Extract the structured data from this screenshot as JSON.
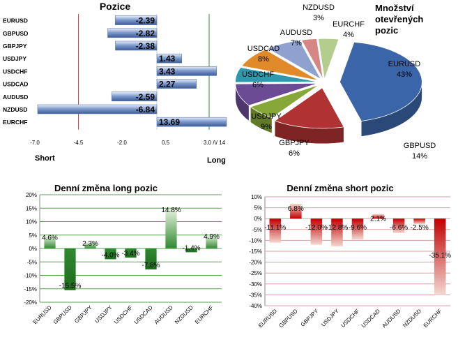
{
  "colors": {
    "bar_blue": "#7f9ccd",
    "bar_blue_dark": "#3c5a96",
    "bar_green": "#2f8a2f",
    "bar_green_light": "#e8f3e0",
    "bar_red": "#c00000",
    "bar_red_light": "#f3d8d0",
    "short_line": "#c84848",
    "long_line": "#2e8b2e",
    "zero_line": "#d0d0d0",
    "grid_green": "#5aa050",
    "grid_red": "#d8a0a0"
  },
  "chart_data": [
    {
      "type": "bar",
      "orientation": "horizontal",
      "title": "Pozice",
      "categories": [
        "EURUSD",
        "GBPUSD",
        "GBPJPY",
        "USDJPY",
        "USDCHF",
        "USDCAD",
        "AUDUSD",
        "NZDUSD",
        "EURCHF"
      ],
      "values": [
        -2.39,
        -2.82,
        -2.38,
        1.43,
        3.43,
        2.27,
        -2.59,
        -6.84,
        13.69
      ],
      "value_labels": [
        "-2.39",
        "-2.82",
        "-2.38",
        "1.43",
        "3.43",
        "2.27",
        "-2.59",
        "-6.84",
        "13.69"
      ],
      "xlim": [
        -7.0,
        4.0
      ],
      "ticks": [
        -7.0,
        -4.5,
        -2.0,
        0.5,
        3.0
      ],
      "tick_labels": [
        "-7.0",
        "-4.5",
        "-2.0",
        "0.5",
        "3.0 /\\/ 14"
      ],
      "short_label": "Short",
      "long_label": "Long",
      "short_threshold": -4.5,
      "long_threshold": 3.0,
      "axis_break": true
    },
    {
      "type": "pie",
      "title_lines": [
        "Množství",
        "otevřených",
        "pozic"
      ],
      "slices": [
        {
          "name": "EURUSD",
          "value": 43,
          "label": "43%",
          "color": "#3a65a8"
        },
        {
          "name": "GBPUSD",
          "value": 14,
          "label": "14%",
          "color": "#b03232"
        },
        {
          "name": "GBPJPY",
          "value": 6,
          "label": "6%",
          "color": "#87a838"
        },
        {
          "name": "USDJPY",
          "value": 9,
          "label": "9%",
          "color": "#6a4b94"
        },
        {
          "name": "USDCHF",
          "value": 6,
          "label": "6%",
          "color": "#2f98ad"
        },
        {
          "name": "USDCAD",
          "value": 8,
          "label": "8%",
          "color": "#e08a2a"
        },
        {
          "name": "AUDUSD",
          "value": 7,
          "label": "7%",
          "color": "#8ea1cf"
        },
        {
          "name": "NZDUSD",
          "value": 3,
          "label": "3%",
          "color": "#d58784"
        },
        {
          "name": "EURCHF",
          "value": 4,
          "label": "4%",
          "color": "#b4cc8c"
        }
      ]
    },
    {
      "type": "bar",
      "title": "Denní změna long pozic",
      "categories": [
        "EURUSD",
        "GBPUSD",
        "GBPJPY",
        "USDJPY",
        "USDCHF",
        "USDCAD",
        "AUDUSD",
        "NZDUSD",
        "EURCHF"
      ],
      "values": [
        4.6,
        -15.5,
        2.3,
        -4.0,
        -3.4,
        -7.8,
        14.8,
        -1.4,
        4.9
      ],
      "value_labels": [
        "4.6%",
        "-15.5%",
        "2.3%",
        "-4.0%",
        "-3.4%",
        "-7.8%",
        "14.8%",
        "-1.4%",
        "4.9%"
      ],
      "ylim": [
        -20,
        20
      ],
      "yticks": [
        -20,
        -15,
        -10,
        -5,
        0,
        5,
        10,
        15,
        20
      ],
      "ytick_labels": [
        "-20%",
        "-15%",
        "-10%",
        "-5%",
        "0%",
        "5%",
        "10%",
        "15%",
        "20%"
      ],
      "grid": true
    },
    {
      "type": "bar",
      "title": "Denní změna short pozic",
      "categories": [
        "EURUSD",
        "GBPUSD",
        "GBPJPY",
        "USDJPY",
        "USDCHF",
        "USDCAD",
        "AUDUSD",
        "NZDUSD",
        "EURCHF"
      ],
      "values": [
        -11.1,
        6.8,
        -12.0,
        -12.8,
        -9.6,
        2.1,
        -6.6,
        -2.5,
        -35.1
      ],
      "value_labels": [
        "-11.1%",
        "6.8%",
        "-12.0%",
        "-12.8%",
        "-9.6%",
        "2.1%",
        "-6.6%",
        "-2.5%",
        "-35.1%"
      ],
      "ylim": [
        -40,
        10
      ],
      "yticks": [
        -40,
        -35,
        -30,
        -25,
        -20,
        -15,
        -10,
        -5,
        0,
        5,
        10
      ],
      "ytick_labels": [
        "-40%",
        "-35%",
        "-30%",
        "-25%",
        "-20%",
        "-15%",
        "-10%",
        "-5%",
        "0%",
        "5%",
        "10%"
      ],
      "grid": true
    }
  ]
}
